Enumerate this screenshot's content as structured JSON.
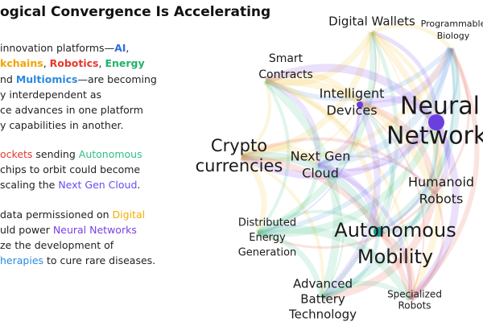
{
  "header": {
    "title": "ogical Convergence Is Accelerating"
  },
  "paragraphs": [
    {
      "lines": [
        [
          {
            "text": "innovation platforms—"
          },
          {
            "text": "AI",
            "color": "#2f6fe0",
            "bold": true
          },
          {
            "text": ","
          }
        ],
        [
          {
            "text": "kchains",
            "color": "#f4a300",
            "bold": true
          },
          {
            "text": ", "
          },
          {
            "text": "Robotics",
            "color": "#e8372c",
            "bold": true
          },
          {
            "text": ", "
          },
          {
            "text": "Energy",
            "color": "#22b26a",
            "bold": true
          }
        ],
        [
          {
            "text": "nd "
          },
          {
            "text": "Multiomics",
            "color": "#2a8be0",
            "bold": true
          },
          {
            "text": "—are becoming"
          }
        ],
        [
          {
            "text": "y interdependent as"
          }
        ],
        [
          {
            "text": "ce advances in one platform"
          }
        ],
        [
          {
            "text": "y capabilities in another."
          }
        ]
      ]
    },
    {
      "lines": [
        [
          {
            "text": "ockets",
            "color": "#e8372c"
          },
          {
            "text": " sending "
          },
          {
            "text": "Autonomous",
            "color": "#2fbf86"
          }
        ],
        [
          {
            "text": "chips to orbit could become"
          }
        ],
        [
          {
            "text": "scaling the "
          },
          {
            "text": "Next Gen Cloud",
            "color": "#6a4cf0"
          },
          {
            "text": "."
          }
        ]
      ]
    },
    {
      "lines": [
        [
          {
            "text": "data permissioned on "
          },
          {
            "text": "Digital",
            "color": "#f0b000"
          }
        ],
        [
          {
            "text": "uld power "
          },
          {
            "text": "Neural Networks",
            "color": "#7b3fe4"
          }
        ],
        [
          {
            "text": "ze the development of"
          }
        ],
        [
          {
            "text": "herapies",
            "color": "#2a8be0"
          },
          {
            "text": " to cure rare diseases."
          }
        ]
      ]
    }
  ],
  "nodes": [
    {
      "label_lines": [
        "Digital Wallets"
      ]
    },
    {
      "label_lines": [
        "Programmable",
        "Biology"
      ]
    },
    {
      "label_lines": [
        "Smart",
        "Contracts"
      ]
    },
    {
      "label_lines": [
        "Intelligent",
        "Devices"
      ]
    },
    {
      "label_lines": [
        "Neural",
        "Network"
      ]
    },
    {
      "label_lines": [
        "Crypto",
        "currencies"
      ]
    },
    {
      "label_lines": [
        "Next Gen",
        "Cloud"
      ]
    },
    {
      "label_lines": [
        "Humanoid",
        "Robots"
      ]
    },
    {
      "label_lines": [
        "Distributed",
        "Energy",
        "Generation"
      ]
    },
    {
      "label_lines": [
        "Autonomous",
        "Mobility"
      ]
    },
    {
      "label_lines": [
        "Advanced",
        "Battery",
        "Technology"
      ]
    },
    {
      "label_lines": [
        "Specialized",
        "Robots"
      ]
    }
  ]
}
